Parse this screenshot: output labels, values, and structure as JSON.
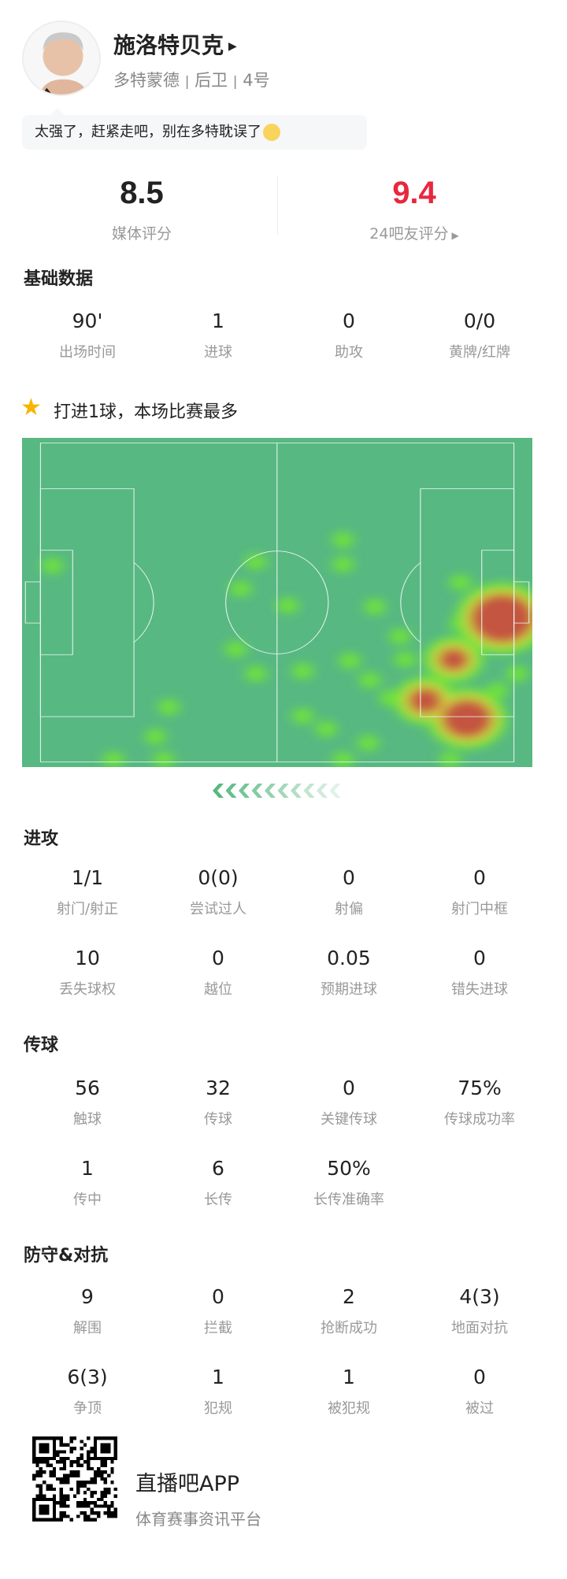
{
  "player": {
    "name": "施洛特贝克",
    "team": "多特蒙德",
    "position": "后卫",
    "number": "4号",
    "separator": "|"
  },
  "comment": "太强了，赶紧走吧，别在多特耽误了",
  "ratings": {
    "media": {
      "value": "8.5",
      "label": "媒体评分"
    },
    "fans": {
      "value": "9.4",
      "label": "24吧友评分"
    }
  },
  "colors": {
    "fan_rating": "#e8273f",
    "pitch": "#57b882",
    "star": "#f7b500"
  },
  "basic": {
    "title": "基础数据",
    "stats": [
      {
        "v": "90'",
        "l": "出场时间"
      },
      {
        "v": "1",
        "l": "进球"
      },
      {
        "v": "0",
        "l": "助攻"
      },
      {
        "v": "0/0",
        "l": "黄牌/红牌"
      }
    ]
  },
  "highlight": "打进1球，本场比赛最多",
  "attack": {
    "title": "进攻",
    "stats": [
      {
        "v": "1/1",
        "l": "射门/射正"
      },
      {
        "v": "0(0)",
        "l": "尝试过人"
      },
      {
        "v": "0",
        "l": "射偏"
      },
      {
        "v": "0",
        "l": "射门中框"
      },
      {
        "v": "10",
        "l": "丢失球权"
      },
      {
        "v": "0",
        "l": "越位"
      },
      {
        "v": "0.05",
        "l": "预期进球"
      },
      {
        "v": "0",
        "l": "错失进球"
      }
    ]
  },
  "passing": {
    "title": "传球",
    "stats": [
      {
        "v": "56",
        "l": "触球"
      },
      {
        "v": "32",
        "l": "传球"
      },
      {
        "v": "0",
        "l": "关键传球"
      },
      {
        "v": "75%",
        "l": "传球成功率"
      },
      {
        "v": "1",
        "l": "传中"
      },
      {
        "v": "6",
        "l": "长传"
      },
      {
        "v": "50%",
        "l": "长传准确率"
      }
    ]
  },
  "defense": {
    "title": "防守&对抗",
    "stats": [
      {
        "v": "9",
        "l": "解围"
      },
      {
        "v": "0",
        "l": "拦截"
      },
      {
        "v": "2",
        "l": "抢断成功"
      },
      {
        "v": "4(3)",
        "l": "地面对抗"
      },
      {
        "v": "6(3)",
        "l": "争顶"
      },
      {
        "v": "1",
        "l": "犯规"
      },
      {
        "v": "1",
        "l": "被犯规"
      },
      {
        "v": "0",
        "l": "被过"
      }
    ]
  },
  "footer": {
    "app": "直播吧APP",
    "slogan": "体育赛事资讯平台"
  }
}
